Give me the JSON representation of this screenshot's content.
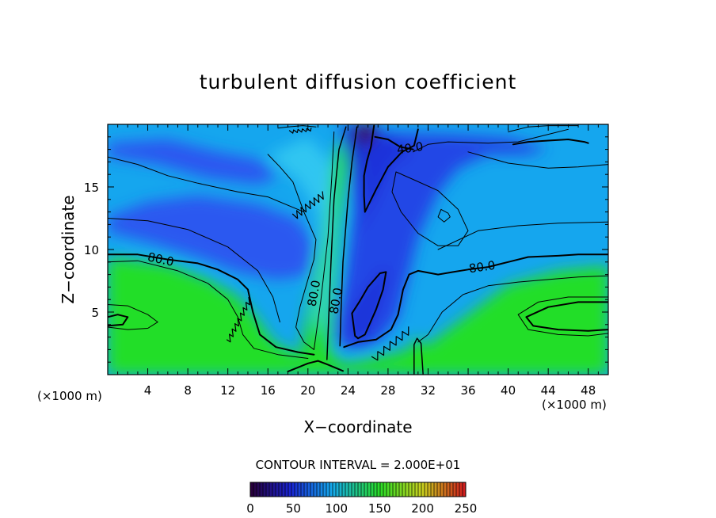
{
  "chart_data": {
    "type": "heatmap",
    "title": "turbulent diffusion coefficient",
    "xlabel": "X−coordinate",
    "ylabel": "Z−coordinate",
    "x_unit_left": "(×1000 m)",
    "x_unit_right": "(×1000 m)",
    "xlim": [
      0,
      50
    ],
    "ylim": [
      0,
      20
    ],
    "x_ticks": [
      4,
      8,
      12,
      16,
      20,
      24,
      28,
      32,
      36,
      40,
      44,
      48
    ],
    "y_ticks": [
      5,
      10,
      15
    ],
    "contour_interval_label": "CONTOUR INTERVAL = 2.000E+01",
    "contour_labels": [
      {
        "text": "40.0",
        "x": 30.2,
        "z": 18.1
      },
      {
        "text": "80.0",
        "x": 5.3,
        "z": 9.2
      },
      {
        "text": "80.0",
        "x": 20.6,
        "z": 6.5
      },
      {
        "text": "80.0",
        "x": 22.8,
        "z": 5.9
      },
      {
        "text": "80.0",
        "x": 37.4,
        "z": 8.6
      }
    ],
    "colorbar": {
      "min": 0,
      "max": 250,
      "ticks": [
        0,
        50,
        100,
        150,
        200,
        250
      ]
    },
    "colors": {
      "low": "#3a0050",
      "mid_low": "#1e3fe6",
      "mid": "#1ab4f0",
      "mid_high": "#23e11e",
      "high": "#e0e010",
      "max": "#d21e1e"
    }
  }
}
